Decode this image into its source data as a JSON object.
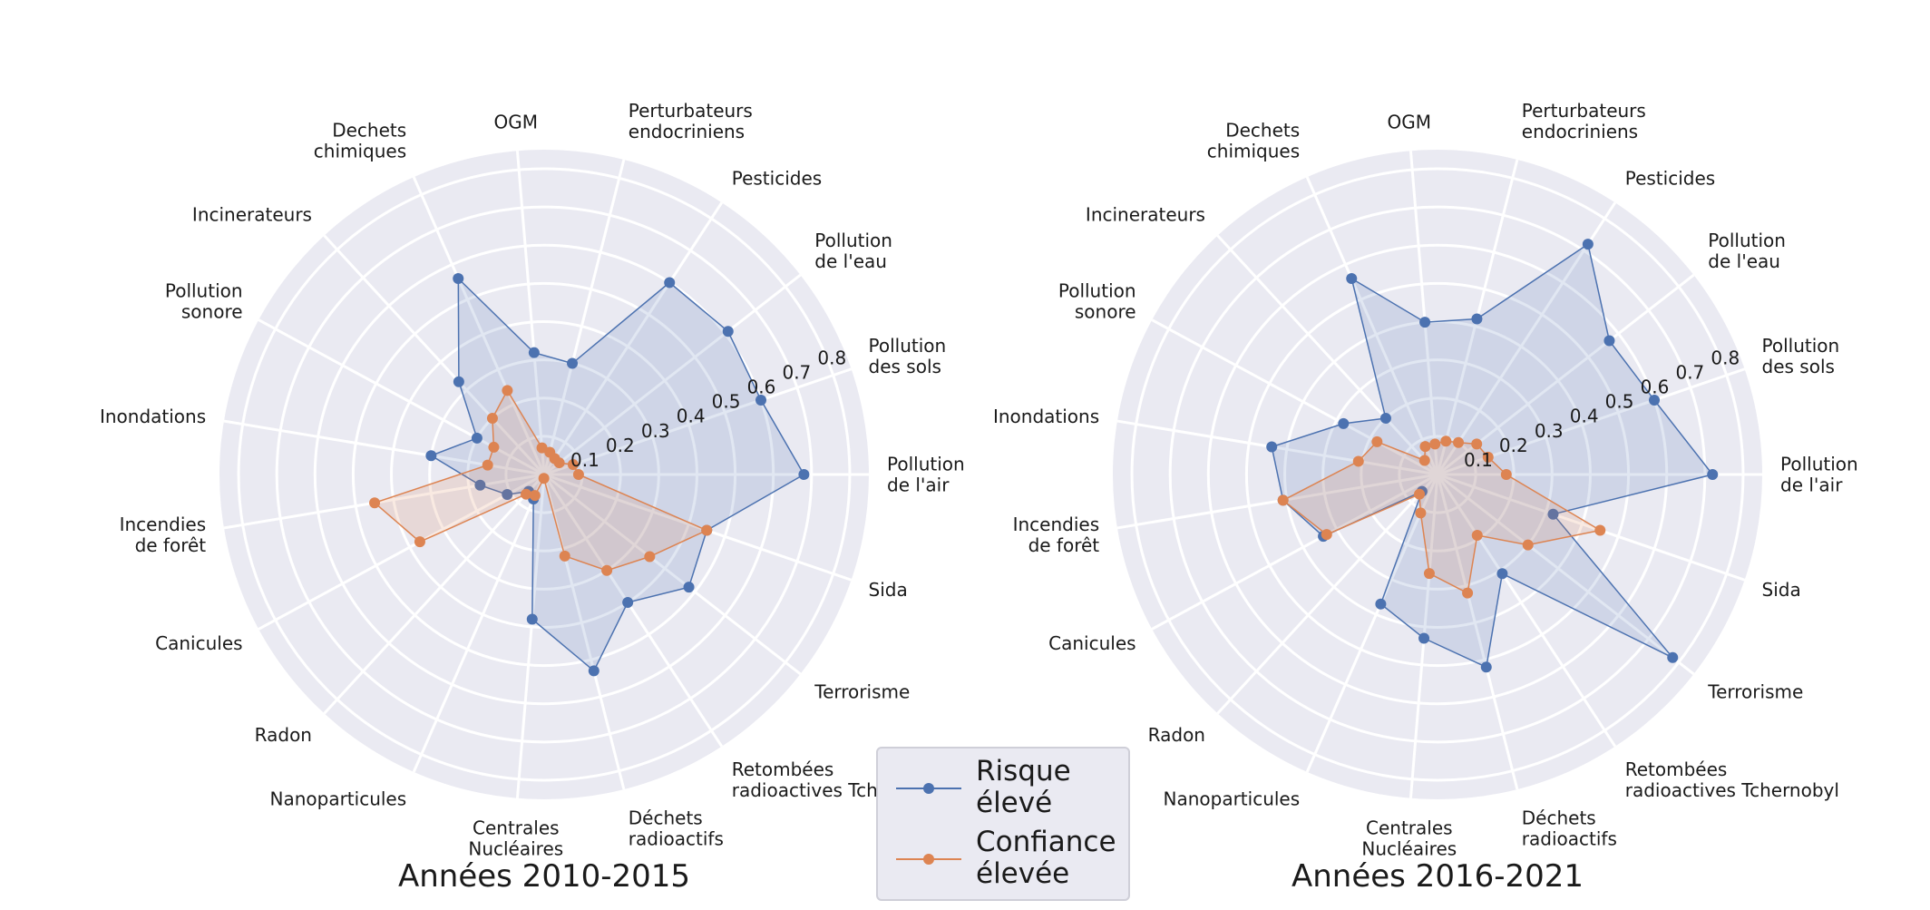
{
  "chart_data": [
    {
      "type": "radar",
      "title": "Années 2010-2015",
      "categories": [
        "Pollution\nde l'air",
        "Pollution\ndes sols",
        "Pollution\nde l'eau",
        "Pesticides",
        "Perturbateurs\nendocriniens",
        "OGM",
        "Dechets\nchimiques",
        "Incinerateurs",
        "Pollution\nsonore",
        "Inondations",
        "Incendies\nde forêt",
        "Canicules",
        "Radon",
        "Nanoparticules",
        "Centrales\nNucléaires",
        "Déchets\nradioactifs",
        "Retombées\nradioactives Tchernobyl",
        "Terrorisme",
        "Sida"
      ],
      "r_ticks": [
        "0.1",
        "0.2",
        "0.3",
        "0.4",
        "0.5",
        "0.6",
        "0.7",
        "0.8"
      ],
      "r_tick_values": [
        0.1,
        0.2,
        0.3,
        0.4,
        0.5,
        0.6,
        0.7,
        0.8
      ],
      "rlim": [
        0,
        0.85
      ],
      "series": [
        {
          "name": "Risque\nélevé",
          "color": "#4c72b0",
          "values": [
            0.68,
            0.6,
            0.61,
            0.6,
            0.3,
            0.32,
            0.56,
            0.33,
            0.2,
            0.3,
            0.17,
            0.11,
            0.06,
            0.07,
            0.38,
            0.53,
            0.4,
            0.48,
            0.45
          ]
        },
        {
          "name": "Confiance\nélevée",
          "color": "#dd8452",
          "values": [
            0.09,
            0.08,
            0.05,
            0.05,
            0.06,
            0.07,
            0.24,
            0.2,
            0.15,
            0.15,
            0.45,
            0.37,
            0.07,
            0.06,
            0.01,
            0.22,
            0.3,
            0.35,
            0.45
          ]
        }
      ]
    },
    {
      "type": "radar",
      "title": "Années 2016-2021",
      "categories": [
        "Pollution\nde l'air",
        "Pollution\ndes sols",
        "Pollution\nde l'eau",
        "Pesticides",
        "Perturbateurs\nendocriniens",
        "OGM",
        "Dechets\nchimiques",
        "Incinerateurs",
        "Pollution\nsonore",
        "Inondations",
        "Incendies\nde forêt",
        "Canicules",
        "Radon",
        "Nanoparticules",
        "Centrales\nNucléaires",
        "Déchets\nradioactifs",
        "Retombées\nradioactives Tchernobyl",
        "Terrorisme",
        "Sida"
      ],
      "r_ticks": [
        "0.1",
        "0.2",
        "0.3",
        "0.4",
        "0.5",
        "0.6",
        "0.7",
        "0.8"
      ],
      "r_tick_values": [
        0.1,
        0.2,
        0.3,
        0.4,
        0.5,
        0.6,
        0.7,
        0.8
      ],
      "rlim": [
        0,
        0.85
      ],
      "series": [
        {
          "name": "Risque\nélevé",
          "color": "#4c72b0",
          "values": [
            0.72,
            0.6,
            0.57,
            0.72,
            0.42,
            0.4,
            0.56,
            0.2,
            0.28,
            0.44,
            0.41,
            0.34,
            0.06,
            0.37,
            0.43,
            0.52,
            0.31,
            0.78,
            0.32
          ]
        },
        {
          "name": "Confiance\nélevée",
          "color": "#dd8452",
          "values": [
            0.18,
            0.14,
            0.13,
            0.1,
            0.09,
            0.08,
            0.08,
            0.05,
            0.18,
            0.21,
            0.41,
            0.33,
            0.07,
            0.11,
            0.26,
            0.32,
            0.19,
            0.3,
            0.45
          ]
        }
      ]
    }
  ],
  "legend": {
    "placement": "bottom-center",
    "items": [
      {
        "label": "Risque\nélevé",
        "color": "#4c72b0"
      },
      {
        "label": "Confiance\nélevée",
        "color": "#dd8452"
      }
    ]
  }
}
